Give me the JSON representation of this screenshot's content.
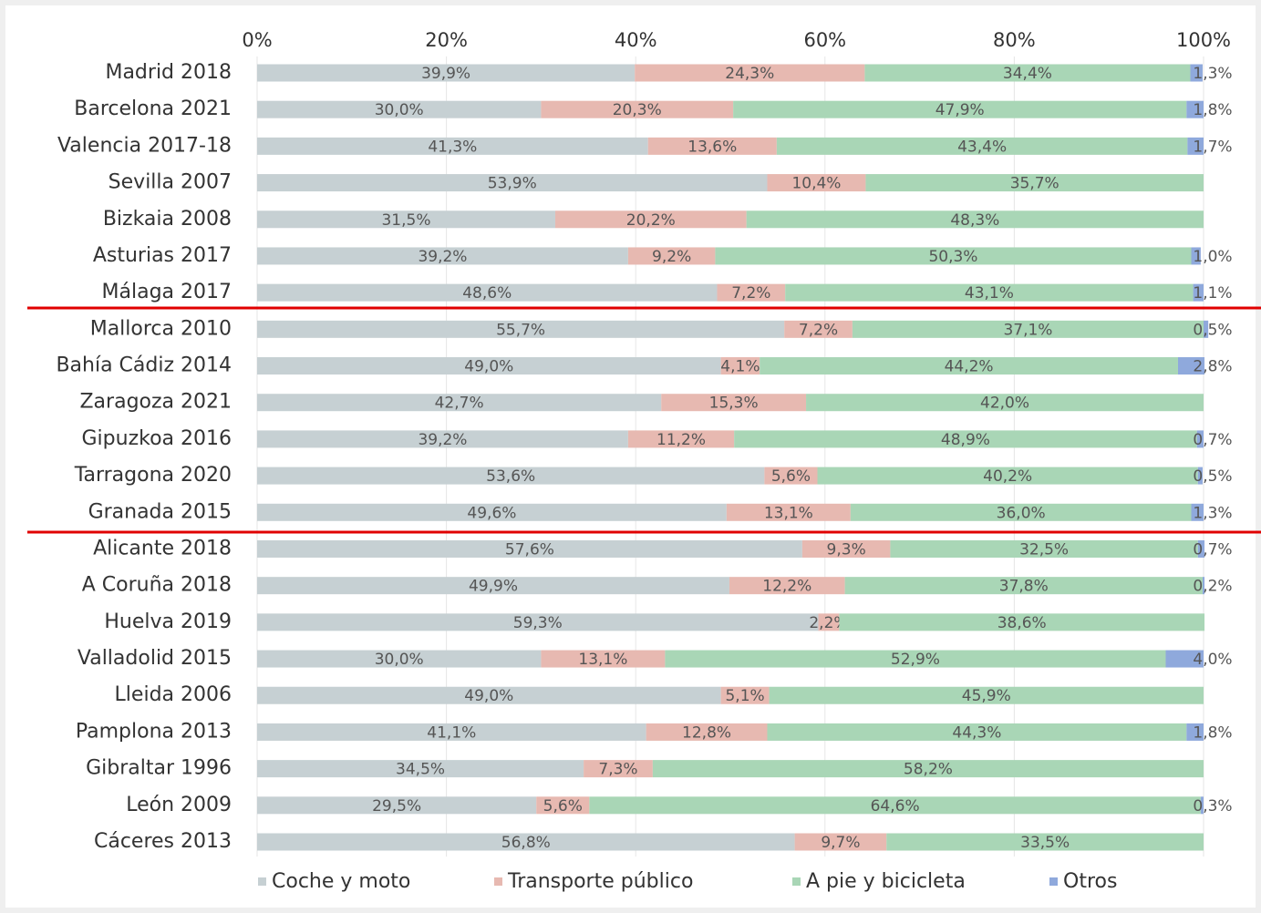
{
  "chart_data": {
    "type": "stacked_bar_horizontal",
    "categories": [
      "Madrid 2018",
      "Barcelona 2021",
      "Valencia 2017-18",
      "Sevilla 2007",
      "Bizkaia 2008",
      "Asturias 2017",
      "Málaga 2017",
      "Mallorca 2010",
      "Bahía Cádiz 2014",
      "Zaragoza 2021",
      "Gipuzkoa 2016",
      "Tarragona 2020",
      "Granada 2015",
      "Alicante 2018",
      "A Coruña 2018",
      "Huelva 2019",
      "Valladolid 2015",
      "Lleida 2006",
      "Pamplona 2013",
      "Gibraltar 1996",
      "León 2009",
      "Cáceres 2013"
    ],
    "series": [
      {
        "name": "Coche y moto",
        "color": "#c6d0d3",
        "values": [
          39.9,
          30,
          41.3,
          53.9,
          31.5,
          39.2,
          48.6,
          55.7,
          49,
          42.7,
          39.2,
          53.6,
          49.6,
          57.6,
          49.9,
          59.3,
          30,
          49,
          41.1,
          34.5,
          29.5,
          56.8
        ],
        "value_labels": [
          "39,9%",
          "30,0%",
          "41,3%",
          "53,9%",
          "31,5%",
          "39,2%",
          "48,6%",
          "55,7%",
          "49,0%",
          "42,7%",
          "39,2%",
          "53,6%",
          "49,6%",
          "57,6%",
          "49,9%",
          "59,3%",
          "30,0%",
          "49,0%",
          "41,1%",
          "34,5%",
          "29,5%",
          "56,8%"
        ]
      },
      {
        "name": "Transporte público",
        "color": "#e7b9b1",
        "values": [
          24.3,
          20.3,
          13.6,
          10.4,
          20.2,
          9.2,
          7.2,
          7.2,
          4.1,
          15.3,
          11.2,
          5.6,
          13.1,
          9.3,
          12.2,
          2.2,
          13.1,
          5.1,
          12.8,
          7.3,
          5.6,
          9.7
        ],
        "value_labels": [
          "24,3%",
          "20,3%",
          "13,6%",
          "10,4%",
          "20,2%",
          "9,2%",
          "7,2%",
          "7,2%",
          "4,1%",
          "15,3%",
          "11,2%",
          "5,6%",
          "13,1%",
          "9,3%",
          "12,2%",
          "2,2%",
          "13,1%",
          "5,1%",
          "12,8%",
          "7,3%",
          "5,6%",
          "9,7%"
        ]
      },
      {
        "name": "A pie y bicicleta",
        "color": "#a9d6b6",
        "values": [
          34.4,
          47.9,
          43.4,
          35.7,
          48.3,
          50.3,
          43.1,
          37.1,
          44.2,
          42,
          48.9,
          40.2,
          36,
          32.5,
          37.8,
          38.6,
          52.9,
          45.9,
          44.3,
          58.2,
          64.6,
          33.5
        ],
        "value_labels": [
          "34,4%",
          "47,9%",
          "43,4%",
          "35,7%",
          "48,3%",
          "50,3%",
          "43,1%",
          "37,1%",
          "44,2%",
          "42,0%",
          "48,9%",
          "40,2%",
          "36,0%",
          "32,5%",
          "37,8%",
          "38,6%",
          "52,9%",
          "45,9%",
          "44,3%",
          "58,2%",
          "64,6%",
          "33,5%"
        ]
      },
      {
        "name": "Otros",
        "color": "#8fa9dc",
        "values": [
          1.3,
          1.8,
          1.7,
          null,
          null,
          1,
          1.1,
          0.5,
          2.8,
          null,
          0.7,
          0.5,
          1.3,
          0.7,
          0.2,
          null,
          4,
          null,
          1.8,
          null,
          0.3,
          null
        ],
        "value_labels": [
          "1,3%",
          "1,8%",
          "1,7%",
          null,
          null,
          "1,0%",
          "1,1%",
          "0,5%",
          "2,8%",
          null,
          "0,7%",
          "0,5%",
          "1,3%",
          "0,7%",
          "0,2%",
          null,
          "4,0%",
          null,
          "1,8%",
          null,
          "0,3%",
          null
        ]
      }
    ],
    "xlim": [
      0,
      100
    ],
    "xticks": [
      {
        "value": 0,
        "label": "0%"
      },
      {
        "value": 20,
        "label": "20%"
      },
      {
        "value": 40,
        "label": "40%"
      },
      {
        "value": 60,
        "label": "60%"
      },
      {
        "value": 80,
        "label": "80%"
      },
      {
        "value": 100,
        "label": "100%"
      }
    ],
    "grid": true
  }
}
